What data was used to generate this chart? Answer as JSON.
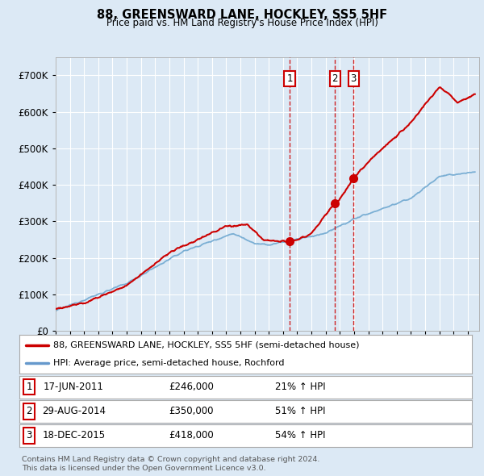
{
  "title": "88, GREENSWARD LANE, HOCKLEY, SS5 5HF",
  "subtitle": "Price paid vs. HM Land Registry's House Price Index (HPI)",
  "background_color": "#dce9f5",
  "plot_bg_color": "#dce9f5",
  "grid_color": "#ffffff",
  "legend_entries": [
    "88, GREENSWARD LANE, HOCKLEY, SS5 5HF (semi-detached house)",
    "HPI: Average price, semi-detached house, Rochford"
  ],
  "legend_colors": [
    "#cc0000",
    "#6699cc"
  ],
  "sale_year_floats": [
    2011.46,
    2014.66,
    2015.96
  ],
  "sale_prices": [
    246000,
    350000,
    418000
  ],
  "sale_labels": [
    "1",
    "2",
    "3"
  ],
  "sale_label_color": "#cc0000",
  "sale_vline_color": "#cc0000",
  "table_rows": [
    [
      "1",
      "17-JUN-2011",
      "£246,000",
      "21% ↑ HPI"
    ],
    [
      "2",
      "29-AUG-2014",
      "£350,000",
      "51% ↑ HPI"
    ],
    [
      "3",
      "18-DEC-2015",
      "£418,000",
      "54% ↑ HPI"
    ]
  ],
  "footnote": "Contains HM Land Registry data © Crown copyright and database right 2024.\nThis data is licensed under the Open Government Licence v3.0.",
  "ylim": [
    0,
    750000
  ],
  "yticks": [
    0,
    100000,
    200000,
    300000,
    400000,
    500000,
    600000,
    700000
  ],
  "hpi_line_color": "#7bafd4",
  "price_line_color": "#cc0000",
  "xlim_start": 1995,
  "xlim_end": 2024.8
}
